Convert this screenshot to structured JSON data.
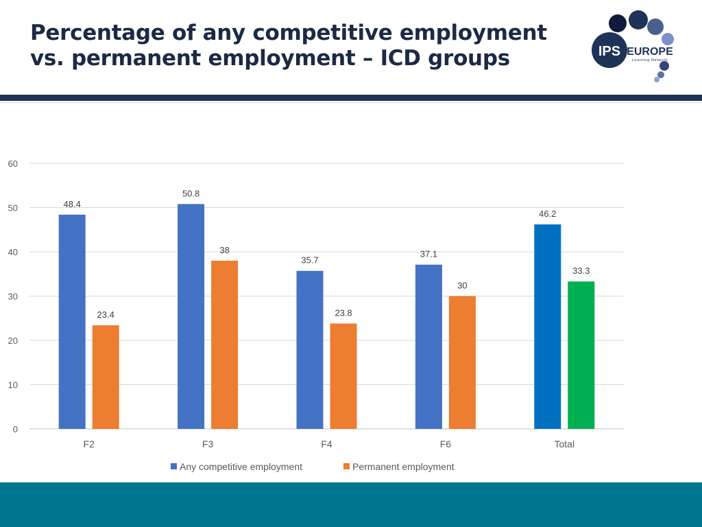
{
  "slide": {
    "title_line1": "Percentage of any competitive employment",
    "title_line2": "vs. permanent employment – ICD groups"
  },
  "logo": {
    "icon": "ips-europe-logo",
    "text_main": "IPS",
    "text_side": "EUROPE",
    "text_sub": "Learning Network"
  },
  "colors": {
    "title": "#1b2a44",
    "divider": "#1f3257",
    "footer": "#007790"
  },
  "chart_data": {
    "type": "bar",
    "title": "",
    "xlabel": "",
    "ylabel": "",
    "categories": [
      "F2",
      "F3",
      "F4",
      "F6",
      "Total"
    ],
    "series": [
      {
        "name": "Any competitive employment",
        "values": [
          48.4,
          50.8,
          35.7,
          37.1,
          46.2
        ],
        "color": "#4472c4",
        "point_colors": [
          "#4472c4",
          "#4472c4",
          "#4472c4",
          "#4472c4",
          "#0070c0"
        ]
      },
      {
        "name": "Permanent employment",
        "values": [
          23.4,
          38,
          23.8,
          30,
          33.3
        ],
        "color": "#ed7d31",
        "point_colors": [
          "#ed7d31",
          "#ed7d31",
          "#ed7d31",
          "#ed7d31",
          "#00b050"
        ]
      }
    ],
    "ylim": [
      0,
      60
    ],
    "yticks": [
      0,
      10,
      20,
      30,
      40,
      50,
      60
    ],
    "grid": true,
    "legend": "bottom",
    "data_labels": true
  }
}
